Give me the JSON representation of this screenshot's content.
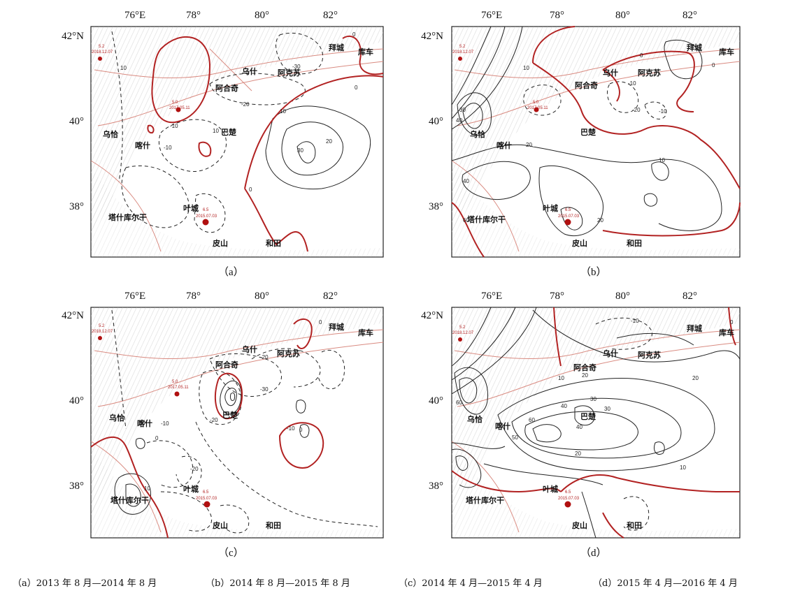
{
  "colors": {
    "zero_contour": "#b22222",
    "contour": "#222222",
    "fault": "#d98a80",
    "epicenter": "#b01010"
  },
  "longitude_ticks": [
    "76°E",
    "78°",
    "80°",
    "82°"
  ],
  "latitude_ticks": [
    "42°N",
    "40°",
    "38°"
  ],
  "cities": {
    "wushi": "乌什",
    "akesu": "阿克苏",
    "aheqi": "阿合奇",
    "baicheng": "拜城",
    "kuche": "库车",
    "bachu": "巴楚",
    "wuqia": "乌恰",
    "kashi": "喀什",
    "yecheng": "叶城",
    "tashkurgan": "塔什库尔干",
    "pishan": "皮山",
    "hetian": "和田"
  },
  "events": {
    "north_mag": "5.2",
    "north_date": "2018.12.07",
    "mid_mag": "5.0",
    "mid_date": "2017.05.11",
    "south_mag": "6.5",
    "south_date": "2015.07.03"
  },
  "panels": [
    {
      "letter": "（a）",
      "caption": "（a）2013 年 8 月—2014 年 8 月"
    },
    {
      "letter": "（b）",
      "caption": "（b）2014 年 8 月—2015 年 8 月"
    },
    {
      "letter": "（c）",
      "caption": "（c）2014 年 4 月—2015 年 4 月"
    },
    {
      "letter": "（d）",
      "caption": "（d）2015 年 4 月—2016 年 4 月"
    }
  ],
  "contour_labels": {
    "a": [
      "10",
      "0",
      "-10",
      "-20",
      "-30",
      "0",
      "10",
      "20",
      "30",
      "-10",
      "10",
      "0"
    ],
    "b": [
      "0",
      "-10",
      "-20",
      "-10",
      "10",
      "40",
      "30",
      "20",
      "10",
      "20",
      "40",
      "0",
      "0",
      "60"
    ],
    "c": [
      "-30",
      "-20",
      "-10",
      "0",
      "-10",
      "-20",
      "10",
      "0",
      "-10",
      "-20",
      "0"
    ],
    "d": [
      "60",
      "50",
      "40",
      "30",
      "20",
      "10",
      "20",
      "30",
      "40",
      "60",
      "10",
      "20",
      "0",
      "-10"
    ]
  }
}
